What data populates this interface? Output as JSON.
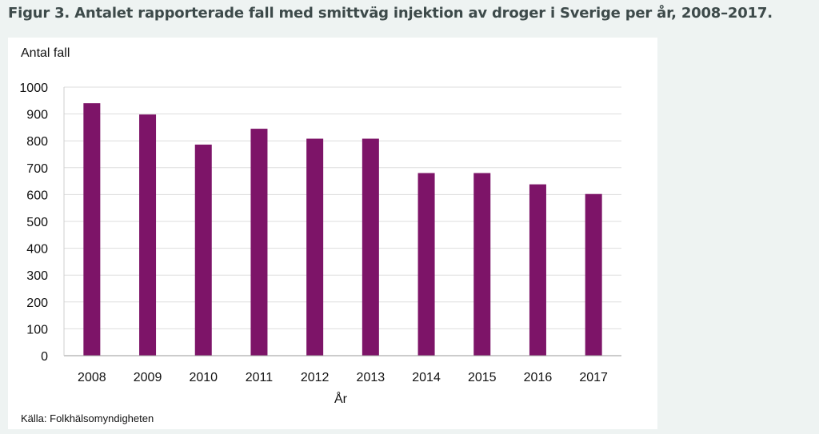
{
  "figure": {
    "title": "Figur 3. Antalet rapporterade fall med smittväg injektion av droger i Sverige per år, 2008–2017.",
    "source": "Källa: Folkhälsomyndigheten"
  },
  "chart_data": {
    "type": "bar",
    "categories": [
      "2008",
      "2009",
      "2010",
      "2011",
      "2012",
      "2013",
      "2014",
      "2015",
      "2016",
      "2017"
    ],
    "values": [
      940,
      898,
      786,
      845,
      808,
      808,
      680,
      680,
      638,
      602
    ],
    "ylabel": "Antal fall",
    "xlabel": "År",
    "ylim": [
      0,
      1000
    ],
    "yticks": [
      "0",
      "100",
      "200",
      "300",
      "400",
      "500",
      "600",
      "700",
      "800",
      "900",
      "1000"
    ],
    "grid": true,
    "bar_color": "#7d1468",
    "grid_color": "#dddddd"
  }
}
